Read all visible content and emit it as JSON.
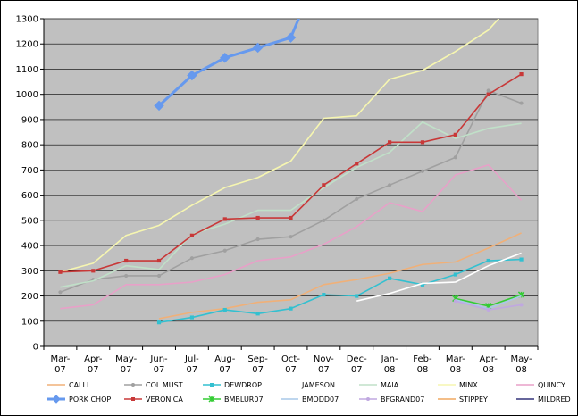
{
  "chart_data": {
    "type": "line",
    "title": "",
    "xlabel": "",
    "ylabel": "",
    "ylim": [
      0,
      1300
    ],
    "ytick_step": 100,
    "grid": "horizontal",
    "plot_background": "#c0c0c0",
    "legend_position": "bottom",
    "categories": [
      "Mar-07",
      "Apr-07",
      "May-07",
      "Jun-07",
      "Jul-07",
      "Aug-07",
      "Sep-07",
      "Oct-07",
      "Nov-07",
      "Dec-07",
      "Jan-08",
      "Feb-08",
      "Mar-08",
      "Apr-08",
      "May-08"
    ],
    "series": [
      {
        "name": "CALLI",
        "color": "#f0b078",
        "marker": "none",
        "values": [
          null,
          null,
          null,
          110,
          135,
          150,
          175,
          185,
          245,
          265,
          290,
          325,
          335,
          390,
          450
        ]
      },
      {
        "name": "COL MUST",
        "color": "#a0a0a0",
        "marker": "circle",
        "values": [
          215,
          265,
          280,
          280,
          350,
          380,
          425,
          435,
          500,
          585,
          640,
          695,
          750,
          1015,
          965
        ]
      },
      {
        "name": "DEWDROP",
        "color": "#33c0d0",
        "marker": "square",
        "values": [
          null,
          null,
          null,
          95,
          115,
          145,
          130,
          150,
          205,
          200,
          270,
          245,
          285,
          340,
          345
        ]
      },
      {
        "name": "JAMESON",
        "color": "#ffffff",
        "marker": "none",
        "values": [
          null,
          null,
          null,
          null,
          null,
          null,
          null,
          null,
          null,
          180,
          210,
          250,
          255,
          320,
          370
        ]
      },
      {
        "name": "MAIA",
        "color": "#c0e0c8",
        "marker": "none",
        "values": [
          235,
          260,
          320,
          305,
          445,
          485,
          540,
          540,
          630,
          710,
          770,
          890,
          825,
          865,
          885
        ]
      },
      {
        "name": "MINX",
        "color": "#f6f6b0",
        "marker": "none",
        "values": [
          295,
          330,
          440,
          480,
          560,
          630,
          670,
          735,
          905,
          915,
          1060,
          1095,
          1170,
          1255,
          1400
        ]
      },
      {
        "name": "QUINCY",
        "color": "#e8a0c8",
        "marker": "none",
        "values": [
          150,
          165,
          245,
          245,
          255,
          285,
          340,
          355,
          405,
          475,
          570,
          535,
          680,
          720,
          580
        ]
      },
      {
        "name": "PORK CHOP",
        "color": "#6699ee",
        "marker": "diamond",
        "values": [
          null,
          null,
          null,
          955,
          1075,
          1145,
          1185,
          1225,
          1540,
          null,
          null,
          null,
          null,
          null,
          null
        ]
      },
      {
        "name": "VERONICA",
        "color": "#c83838",
        "marker": "square",
        "values": [
          295,
          300,
          340,
          340,
          440,
          505,
          510,
          510,
          640,
          725,
          810,
          810,
          840,
          1000,
          1080
        ]
      },
      {
        "name": "BMBLUR07",
        "color": "#33cc33",
        "marker": "star",
        "values": [
          null,
          null,
          null,
          null,
          null,
          null,
          null,
          null,
          null,
          null,
          null,
          null,
          190,
          160,
          205
        ]
      },
      {
        "name": "BMODD07",
        "color": "#a8c8e8",
        "marker": "none",
        "values": [
          null,
          null,
          null,
          null,
          null,
          null,
          null,
          null,
          null,
          null,
          null,
          null,
          185,
          150,
          200
        ]
      },
      {
        "name": "BFGRAND07",
        "color": "#c0a8e0",
        "marker": "circle",
        "values": [
          null,
          null,
          null,
          null,
          null,
          null,
          null,
          null,
          null,
          null,
          null,
          null,
          180,
          145,
          165
        ]
      },
      {
        "name": "STIPPEY",
        "color": "#f0a860",
        "marker": "none",
        "values": [
          null,
          null,
          null,
          null,
          null,
          null,
          null,
          null,
          null,
          null,
          null,
          null,
          null,
          null,
          null
        ]
      },
      {
        "name": "MILDRED",
        "color": "#33337a",
        "marker": "none",
        "values": [
          null,
          null,
          null,
          null,
          null,
          null,
          null,
          null,
          null,
          null,
          null,
          null,
          null,
          null,
          null
        ]
      }
    ]
  }
}
